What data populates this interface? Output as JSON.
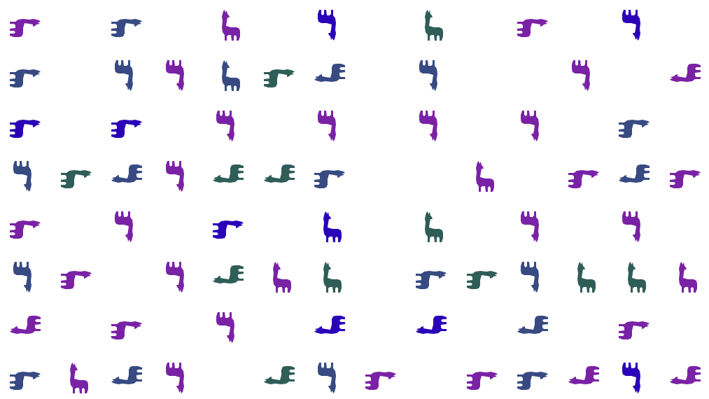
{
  "palette": {
    "purple": "#7a22a6",
    "navy": "#374a82",
    "teal": "#2f5d57",
    "blue": "#2a00b8"
  },
  "icon": "llama-icon",
  "grid": {
    "rows": 8,
    "cols": 14,
    "cells": [
      [
        [
          "purple",
          90
        ],
        null,
        [
          "navy",
          90
        ],
        null,
        [
          "purple",
          0
        ],
        null,
        [
          "blue",
          180
        ],
        null,
        [
          "teal",
          0
        ],
        null,
        [
          "purple",
          90
        ],
        null,
        [
          "blue",
          180
        ],
        null
      ],
      [
        [
          "navy",
          90
        ],
        null,
        [
          "navy",
          180
        ],
        [
          "purple",
          180
        ],
        [
          "navy",
          0
        ],
        [
          "teal",
          90
        ],
        [
          "navy",
          270
        ],
        null,
        [
          "navy",
          180
        ],
        null,
        null,
        [
          "purple",
          180
        ],
        null,
        [
          "purple",
          270
        ]
      ],
      [
        [
          "blue",
          90
        ],
        null,
        [
          "blue",
          90
        ],
        null,
        [
          "purple",
          180
        ],
        null,
        [
          "purple",
          180
        ],
        null,
        [
          "purple",
          180
        ],
        null,
        [
          "purple",
          180
        ],
        null,
        [
          "navy",
          90
        ],
        null
      ],
      [
        [
          "navy",
          180
        ],
        [
          "teal",
          90
        ],
        [
          "navy",
          270
        ],
        [
          "purple",
          180
        ],
        [
          "teal",
          270
        ],
        [
          "teal",
          270
        ],
        [
          "navy",
          90
        ],
        null,
        null,
        [
          "purple",
          0
        ],
        null,
        [
          "purple",
          90
        ],
        [
          "navy",
          270
        ],
        [
          "purple",
          90
        ]
      ],
      [
        [
          "purple",
          90
        ],
        null,
        [
          "purple",
          180
        ],
        null,
        [
          "blue",
          90
        ],
        null,
        [
          "blue",
          0
        ],
        null,
        [
          "teal",
          0
        ],
        null,
        [
          "purple",
          180
        ],
        null,
        [
          "purple",
          180
        ],
        null
      ],
      [
        [
          "navy",
          180
        ],
        [
          "purple",
          90
        ],
        null,
        [
          "purple",
          180
        ],
        [
          "teal",
          270
        ],
        [
          "purple",
          0
        ],
        [
          "teal",
          0
        ],
        null,
        [
          "navy",
          90
        ],
        [
          "teal",
          90
        ],
        [
          "navy",
          180
        ],
        [
          "teal",
          0
        ],
        [
          "teal",
          0
        ],
        [
          "purple",
          0
        ]
      ],
      [
        [
          "purple",
          270
        ],
        null,
        [
          "purple",
          90
        ],
        null,
        [
          "purple",
          180
        ],
        null,
        [
          "blue",
          270
        ],
        null,
        [
          "blue",
          270
        ],
        null,
        [
          "navy",
          270
        ],
        null,
        [
          "purple",
          90
        ],
        null
      ],
      [
        [
          "navy",
          90
        ],
        [
          "purple",
          0
        ],
        [
          "navy",
          270
        ],
        [
          "purple",
          180
        ],
        null,
        [
          "teal",
          270
        ],
        [
          "navy",
          180
        ],
        [
          "purple",
          90
        ],
        null,
        [
          "purple",
          90
        ],
        [
          "navy",
          90
        ],
        [
          "purple",
          270
        ],
        [
          "blue",
          180
        ],
        [
          "purple",
          270
        ]
      ]
    ]
  }
}
